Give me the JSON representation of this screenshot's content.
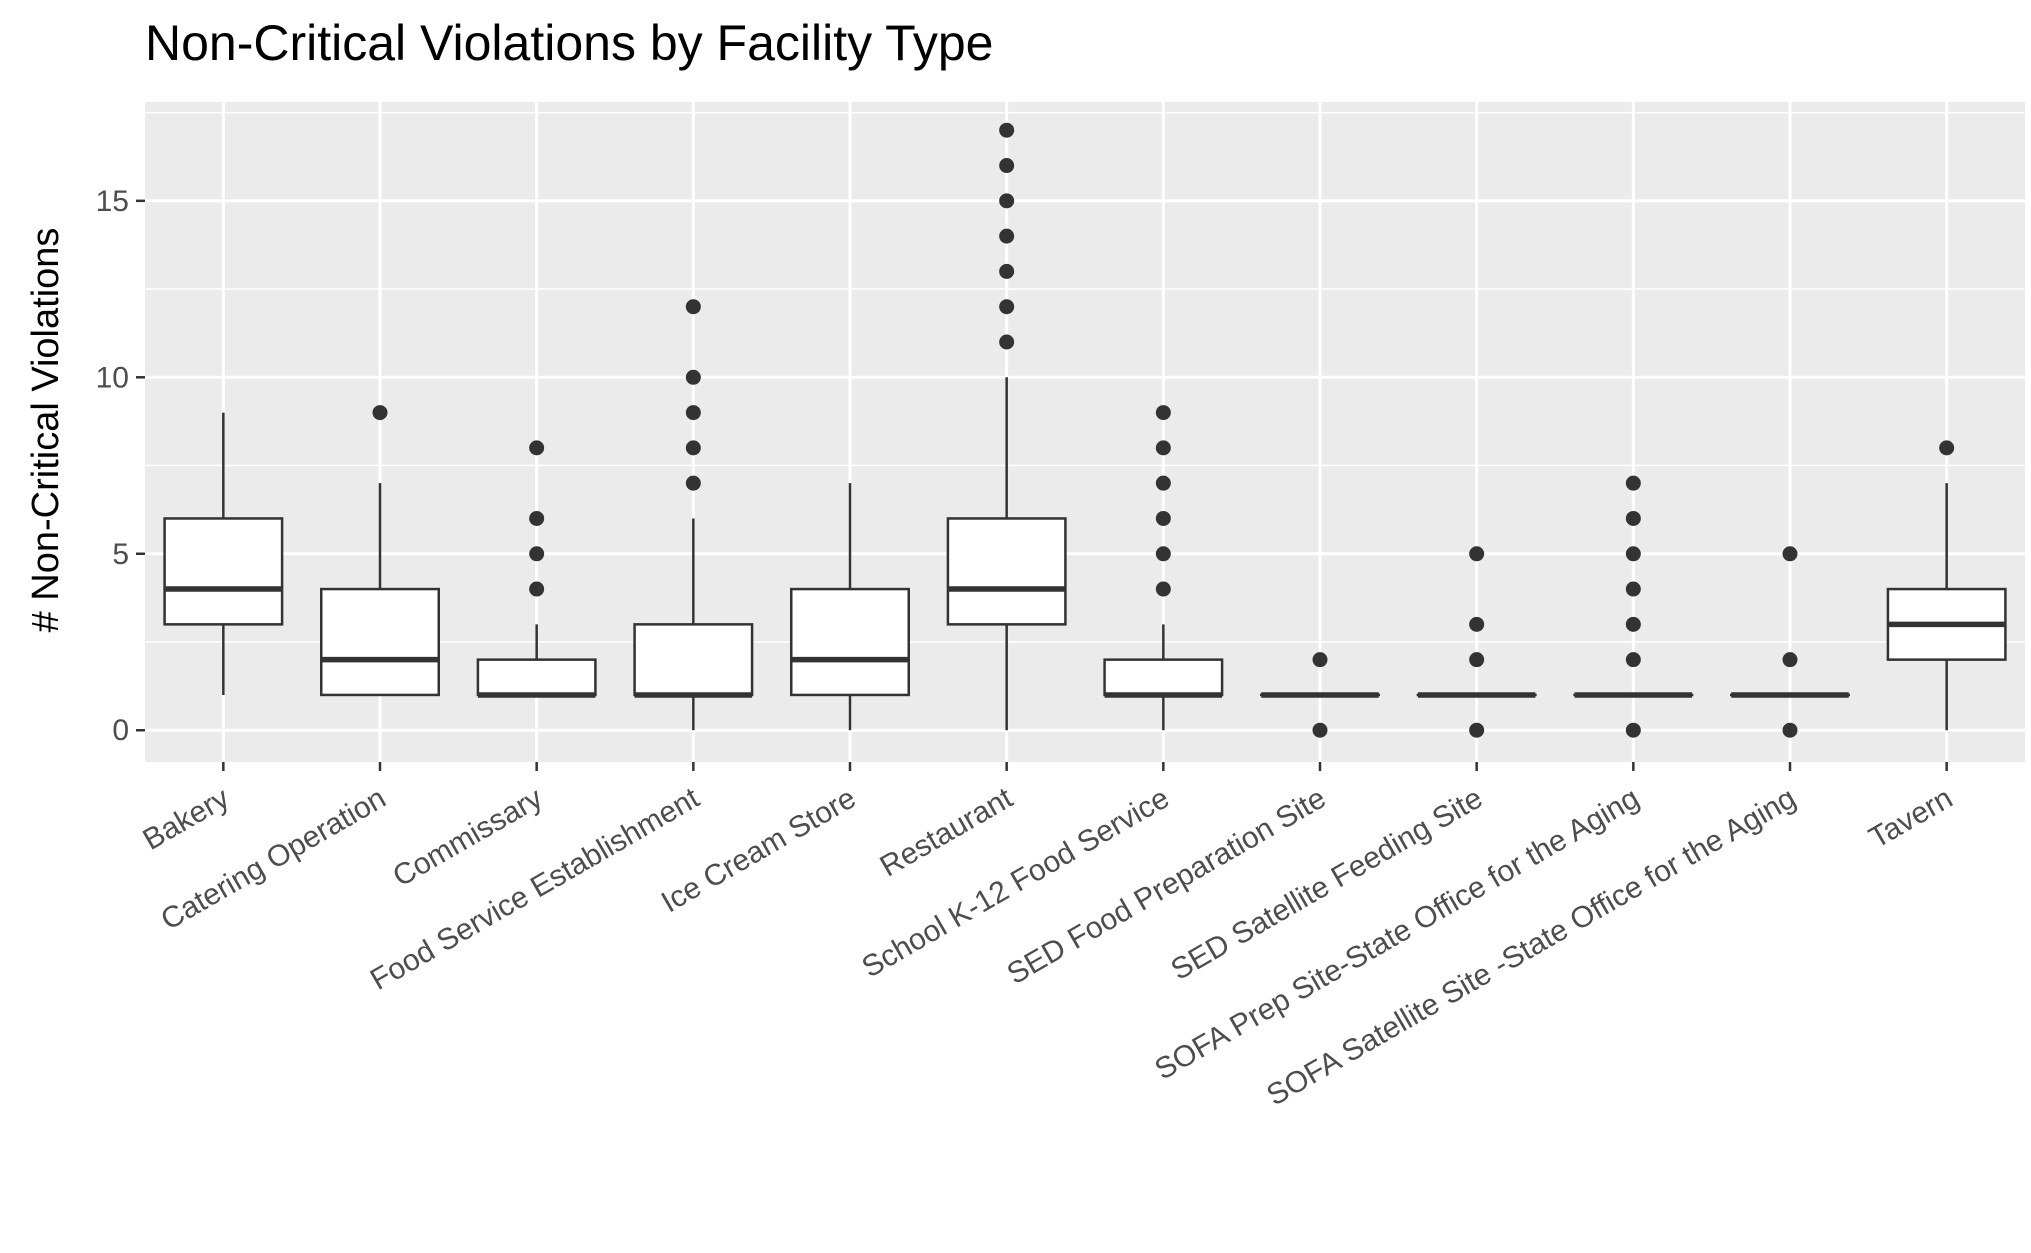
{
  "chart_data": {
    "type": "boxplot",
    "title": "Non-Critical Violations by Facility Type",
    "xlabel": "",
    "ylabel": "# Non-Critical Violations",
    "ylim": [
      -0.9,
      17.8
    ],
    "yticks": [
      0,
      5,
      10,
      15
    ],
    "ytick_labels": [
      "0",
      "5",
      "10",
      "15"
    ],
    "grid": true,
    "background": "#ebebeb",
    "grid_color": "#ffffff",
    "box_fill": "#ffffff",
    "line_color": "#333333",
    "categories": [
      "Bakery",
      "Catering Operation",
      "Commissary",
      "Food Service Establishment",
      "Ice Cream Store",
      "Restaurant",
      "School K-12 Food Service",
      "SED Food Preparation Site",
      "SED Satellite Feeding Site",
      "SOFA Prep Site-State Office for the Aging",
      "SOFA Satellite Site -State Office for the Aging",
      "Tavern"
    ],
    "boxes": [
      {
        "whisker_low": 1,
        "q1": 3,
        "median": 4,
        "q3": 6,
        "whisker_high": 9,
        "outliers": []
      },
      {
        "whisker_low": 1,
        "q1": 1,
        "median": 2,
        "q3": 4,
        "whisker_high": 7,
        "outliers": [
          9
        ]
      },
      {
        "whisker_low": 1,
        "q1": 1,
        "median": 1,
        "q3": 2,
        "whisker_high": 3,
        "outliers": [
          4,
          5,
          6,
          8
        ]
      },
      {
        "whisker_low": 0,
        "q1": 1,
        "median": 1,
        "q3": 3,
        "whisker_high": 6,
        "outliers": [
          7,
          8,
          9,
          10,
          12
        ]
      },
      {
        "whisker_low": 0,
        "q1": 1,
        "median": 2,
        "q3": 4,
        "whisker_high": 7,
        "outliers": []
      },
      {
        "whisker_low": 0,
        "q1": 3,
        "median": 4,
        "q3": 6,
        "whisker_high": 10,
        "outliers": [
          11,
          12,
          13,
          14,
          15,
          16,
          17
        ]
      },
      {
        "whisker_low": 0,
        "q1": 1,
        "median": 1,
        "q3": 2,
        "whisker_high": 3,
        "outliers": [
          4,
          5,
          6,
          7,
          8,
          9
        ]
      },
      {
        "whisker_low": 1,
        "q1": 1,
        "median": 1,
        "q3": 1,
        "whisker_high": 1,
        "outliers": [
          0,
          2
        ]
      },
      {
        "whisker_low": 1,
        "q1": 1,
        "median": 1,
        "q3": 1,
        "whisker_high": 1,
        "outliers": [
          0,
          2,
          3,
          5
        ]
      },
      {
        "whisker_low": 1,
        "q1": 1,
        "median": 1,
        "q3": 1,
        "whisker_high": 1,
        "outliers": [
          0,
          2,
          3,
          4,
          5,
          6,
          7
        ]
      },
      {
        "whisker_low": 1,
        "q1": 1,
        "median": 1,
        "q3": 1,
        "whisker_high": 1,
        "outliers": [
          0,
          2,
          5
        ]
      },
      {
        "whisker_low": 0,
        "q1": 2,
        "median": 3,
        "q3": 4,
        "whisker_high": 7,
        "outliers": [
          8
        ]
      }
    ]
  }
}
